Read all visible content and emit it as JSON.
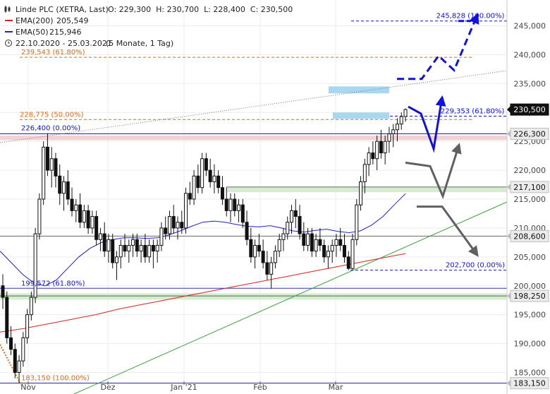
{
  "header": {
    "instrument": "Linde PLC (XETRA, Last)",
    "ohlc": "O: 229,300  H: 230,700  L: 228,400  C: 230,500",
    "ema200_label": "EMA(200)",
    "ema200_value": "205,549",
    "ema50_label": "EMA(50)",
    "ema50_value": "215,946",
    "period": "22.10.2020 - 25.03.2021",
    "period_note": "(5 Monate, 1 Tag)"
  },
  "colors": {
    "ema200": "#e02020",
    "ema50": "#2020d0",
    "fib": "#e06a10",
    "projection": "#1010e0",
    "scenario": "#606060",
    "trendline": "#40a040",
    "zone_blue": "#a8d8f0",
    "zone_green": "#d6ecd0",
    "zone_red": "#f3d2d4"
  },
  "chart_data": {
    "type": "candlestick",
    "title": "Linde PLC (XETRA, Last)",
    "date_range": [
      "22.10.2020",
      "25.03.2021"
    ],
    "x_ticks": [
      "Nov",
      "Dez",
      "Jan '21",
      "Feb",
      "Mar"
    ],
    "y_ticks": [
      "185,000",
      "190,000",
      "195,000",
      "200,000",
      "205,000",
      "210,000",
      "215,000",
      "220,000",
      "225,000",
      "230,000",
      "235,000",
      "240,000",
      "245,000"
    ],
    "ylim": [
      182.5,
      249
    ],
    "price_badges": [
      {
        "label": "230,500",
        "value": 230.5,
        "style": "dark"
      },
      {
        "label": "226,300",
        "value": 226.3,
        "style": "light"
      },
      {
        "label": "217,100",
        "value": 217.1,
        "style": "light"
      },
      {
        "label": "208,600",
        "value": 208.6,
        "style": "light"
      },
      {
        "label": "198,250",
        "value": 198.25,
        "style": "light"
      },
      {
        "label": "183,150",
        "value": 183.15,
        "style": "light"
      }
    ],
    "fib_labels": [
      {
        "label": "245,828 (100.00%)",
        "value": 245.828,
        "color": "projection"
      },
      {
        "label": "239,543 (61.80%)",
        "value": 239.543,
        "color": "fib"
      },
      {
        "label": "228,775 (50.00%)",
        "value": 228.775,
        "color": "fib"
      },
      {
        "label": "226,400 (0.00%)",
        "value": 226.4,
        "color": "projection"
      },
      {
        "label": "229,353 (61.80%)",
        "value": 229.353,
        "color": "projection"
      },
      {
        "label": "202,700 (0.00%)",
        "value": 202.7,
        "color": "projection"
      },
      {
        "label": "199,572 (61.80%)",
        "value": 199.572,
        "color": "projection"
      },
      {
        "label": "183,150 (100.00%)",
        "value": 183.15,
        "color": "fib"
      }
    ],
    "candles": [
      [
        200,
        202,
        196,
        198
      ],
      [
        198,
        199,
        190,
        191
      ],
      [
        191,
        193,
        188,
        189
      ],
      [
        189,
        190,
        184,
        185
      ],
      [
        185,
        188,
        183.15,
        187
      ],
      [
        187,
        192,
        186,
        191
      ],
      [
        191,
        196,
        190,
        195
      ],
      [
        195,
        199,
        194,
        198
      ],
      [
        198,
        210,
        197,
        209
      ],
      [
        209,
        216,
        208,
        215
      ],
      [
        215,
        225,
        214,
        224
      ],
      [
        224,
        226.4,
        219,
        220
      ],
      [
        220,
        224,
        217,
        222
      ],
      [
        222,
        223,
        217,
        219
      ],
      [
        219,
        221,
        214,
        216
      ],
      [
        216,
        219,
        213,
        218
      ],
      [
        218,
        220,
        214,
        215
      ],
      [
        215,
        217,
        212,
        213
      ],
      [
        213,
        215,
        211,
        214
      ],
      [
        214,
        216,
        210,
        211
      ],
      [
        211,
        214,
        210,
        213
      ],
      [
        213,
        214,
        209,
        210
      ],
      [
        210,
        213,
        209,
        212
      ],
      [
        212,
        213,
        207,
        208
      ],
      [
        208,
        210,
        206,
        209
      ],
      [
        209,
        211,
        205,
        206
      ],
      [
        206,
        209,
        204,
        208
      ],
      [
        208,
        209,
        203,
        204
      ],
      [
        204,
        206,
        201,
        205
      ],
      [
        205,
        208,
        203,
        207
      ],
      [
        207,
        209,
        205,
        206
      ],
      [
        206,
        208,
        204,
        207
      ],
      [
        207,
        209,
        205,
        208
      ],
      [
        208,
        209,
        205,
        206
      ],
      [
        206,
        208,
        204,
        207
      ],
      [
        207,
        209,
        204,
        205
      ],
      [
        205,
        208,
        204,
        207
      ],
      [
        207,
        208,
        203,
        206
      ],
      [
        206,
        208,
        204,
        207
      ],
      [
        207,
        211,
        206,
        210
      ],
      [
        210,
        212,
        208,
        209
      ],
      [
        209,
        213,
        208,
        212
      ],
      [
        212,
        214,
        209,
        210
      ],
      [
        210,
        212,
        208,
        211
      ],
      [
        211,
        213,
        209,
        210
      ],
      [
        210,
        217,
        209,
        216
      ],
      [
        216,
        218,
        214,
        215
      ],
      [
        215,
        220,
        214,
        219
      ],
      [
        219,
        221,
        216,
        217
      ],
      [
        217,
        223,
        216,
        222
      ],
      [
        222,
        223,
        219,
        220
      ],
      [
        220,
        222,
        217,
        218
      ],
      [
        218,
        221,
        216,
        219
      ],
      [
        219,
        220,
        216,
        217
      ],
      [
        217,
        219,
        214,
        215
      ],
      [
        215,
        217,
        212,
        213
      ],
      [
        213,
        216,
        211,
        215
      ],
      [
        215,
        216,
        212,
        213
      ],
      [
        213,
        215,
        211,
        214
      ],
      [
        214,
        215,
        210,
        211
      ],
      [
        211,
        213,
        207,
        208
      ],
      [
        208,
        210,
        204,
        205
      ],
      [
        205,
        208,
        203,
        207
      ],
      [
        207,
        209,
        205,
        206
      ],
      [
        206,
        208,
        203,
        204
      ],
      [
        204,
        206,
        201,
        202
      ],
      [
        202,
        205,
        199.5,
        204
      ],
      [
        204,
        207,
        203,
        206
      ],
      [
        206,
        209,
        205,
        208
      ],
      [
        208,
        210,
        206,
        209
      ],
      [
        209,
        212,
        208,
        211
      ],
      [
        211,
        214,
        209,
        213
      ],
      [
        213,
        215,
        210,
        212
      ],
      [
        212,
        214,
        208,
        209
      ],
      [
        209,
        211,
        206,
        207
      ],
      [
        207,
        210,
        206,
        209
      ],
      [
        209,
        210,
        205,
        206
      ],
      [
        206,
        209,
        205,
        208
      ],
      [
        208,
        210,
        206,
        207
      ],
      [
        207,
        208,
        204,
        205
      ],
      [
        205,
        207,
        203,
        206
      ],
      [
        206,
        208,
        204,
        207
      ],
      [
        207,
        209,
        205,
        208
      ],
      [
        208,
        210,
        206,
        207
      ],
      [
        207,
        209,
        204,
        205
      ],
      [
        205,
        206,
        202.7,
        203
      ],
      [
        203,
        209,
        202.7,
        208
      ],
      [
        208,
        215,
        207,
        214
      ],
      [
        214,
        219,
        213,
        218
      ],
      [
        218,
        222,
        216,
        221
      ],
      [
        221,
        224,
        219,
        223
      ],
      [
        223,
        225,
        221,
        222
      ],
      [
        222,
        226,
        220,
        225
      ],
      [
        225,
        227,
        222,
        223
      ],
      [
        223,
        226,
        221,
        225
      ],
      [
        225,
        227.5,
        223,
        226.3
      ],
      [
        226.3,
        228,
        224,
        227
      ],
      [
        227,
        229,
        225,
        228
      ],
      [
        228,
        230,
        227,
        229.3
      ],
      [
        229.3,
        230.7,
        228.4,
        230.5
      ]
    ],
    "series": [
      {
        "name": "EMA(200)",
        "values": [
          192,
          192.3,
          192.6,
          193,
          193.4,
          193.8,
          194.2,
          194.6,
          195,
          195.5,
          196,
          196.4,
          196.8,
          197.2,
          197.6,
          198,
          198.4,
          198.8,
          199.2,
          199.6,
          200,
          200.4,
          200.8,
          201.2,
          201.6,
          202,
          202.4,
          202.8,
          203.2,
          203.6,
          204,
          204.4,
          204.8,
          205.2,
          205.549
        ]
      },
      {
        "name": "EMA(50)",
        "values": [
          206,
          204,
          202,
          200.5,
          200,
          201,
          203,
          205,
          206.5,
          207.5,
          208,
          208.3,
          208.3,
          208.2,
          208.3,
          208.8,
          209.5,
          210.3,
          211,
          211.2,
          211,
          210.6,
          210.3,
          210.2,
          210.4,
          210,
          209.5,
          209.3,
          209.6,
          209.8,
          209.4,
          209.2,
          209.5,
          210.5,
          212,
          214,
          215.946
        ]
      }
    ],
    "projections": {
      "blue_up": [
        [
          579,
          231
        ],
        [
          597,
          229.8
        ],
        [
          615,
          223.7
        ],
        [
          627,
          232.6
        ]
      ],
      "blue_dashed": [
        [
          563,
          235.8
        ],
        [
          598,
          235.8
        ],
        [
          622,
          239.8
        ],
        [
          644,
          237.3
        ],
        [
          677,
          246.9
        ]
      ],
      "grey_up": [
        [
          575,
          221.3
        ],
        [
          610,
          220.7
        ],
        [
          628,
          215.5
        ],
        [
          651,
          224.4
        ]
      ],
      "grey_down": [
        [
          591,
          213.7
        ],
        [
          627,
          213.7
        ],
        [
          677,
          205.3
        ]
      ]
    },
    "gridlines": true
  }
}
